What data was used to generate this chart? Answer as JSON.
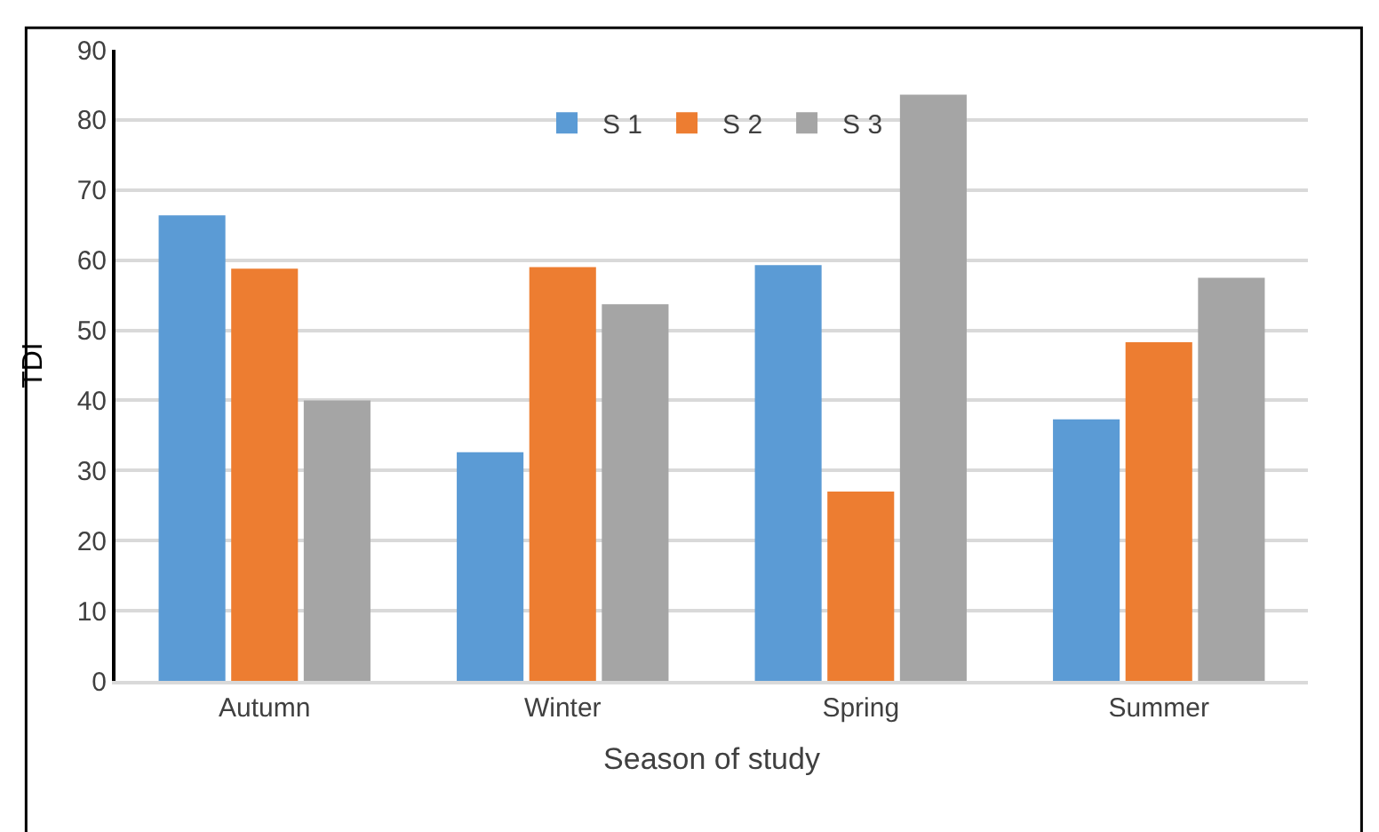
{
  "chart_data": {
    "type": "bar",
    "xlabel": "Season of study",
    "ylabel": "TDI",
    "categories": [
      "Autumn",
      "Winter",
      "Spring",
      "Summer"
    ],
    "series": [
      {
        "name": "S 1",
        "color": "#5b9bd5",
        "values": [
          66.4,
          32.6,
          59.3,
          37.3
        ]
      },
      {
        "name": "S 2",
        "color": "#ed7d31",
        "values": [
          58.8,
          59,
          27,
          48.3
        ]
      },
      {
        "name": "S 3",
        "color": "#a5a5a5",
        "values": [
          40,
          53.7,
          83.6,
          57.5
        ]
      }
    ],
    "ylim": [
      0,
      90
    ],
    "yticks": [
      0,
      10,
      20,
      30,
      40,
      50,
      60,
      70,
      80,
      90
    ],
    "grid": "y",
    "legend": "top"
  }
}
